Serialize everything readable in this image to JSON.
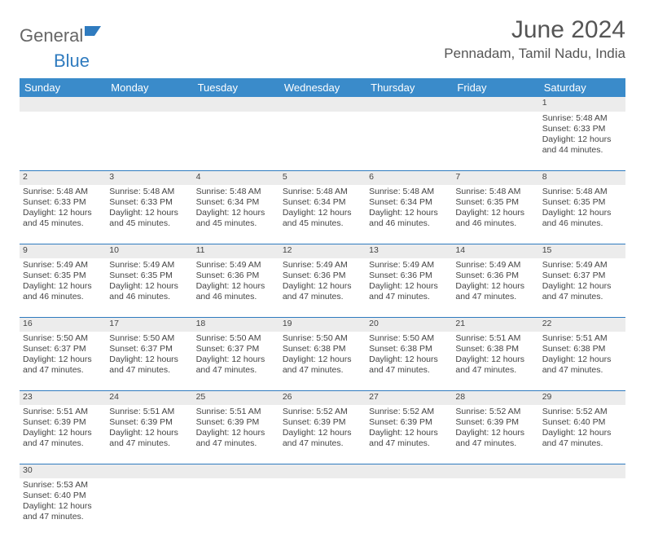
{
  "brand": {
    "part1": "General",
    "part2": "Blue"
  },
  "title": "June 2024",
  "location": "Pennadam, Tamil Nadu, India",
  "colors": {
    "header_bg": "#3a8bca",
    "header_text": "#ffffff",
    "rule": "#2f7bbf",
    "daynum_bg": "#ececec",
    "text": "#444444",
    "title_text": "#555555"
  },
  "day_headers": [
    "Sunday",
    "Monday",
    "Tuesday",
    "Wednesday",
    "Thursday",
    "Friday",
    "Saturday"
  ],
  "weeks": [
    {
      "nums": [
        "",
        "",
        "",
        "",
        "",
        "",
        "1"
      ],
      "cells": [
        null,
        null,
        null,
        null,
        null,
        null,
        {
          "sr": "5:48 AM",
          "ss": "6:33 PM",
          "dl": "12 hours and 44 minutes."
        }
      ]
    },
    {
      "nums": [
        "2",
        "3",
        "4",
        "5",
        "6",
        "7",
        "8"
      ],
      "cells": [
        {
          "sr": "5:48 AM",
          "ss": "6:33 PM",
          "dl": "12 hours and 45 minutes."
        },
        {
          "sr": "5:48 AM",
          "ss": "6:33 PM",
          "dl": "12 hours and 45 minutes."
        },
        {
          "sr": "5:48 AM",
          "ss": "6:34 PM",
          "dl": "12 hours and 45 minutes."
        },
        {
          "sr": "5:48 AM",
          "ss": "6:34 PM",
          "dl": "12 hours and 45 minutes."
        },
        {
          "sr": "5:48 AM",
          "ss": "6:34 PM",
          "dl": "12 hours and 46 minutes."
        },
        {
          "sr": "5:48 AM",
          "ss": "6:35 PM",
          "dl": "12 hours and 46 minutes."
        },
        {
          "sr": "5:48 AM",
          "ss": "6:35 PM",
          "dl": "12 hours and 46 minutes."
        }
      ]
    },
    {
      "nums": [
        "9",
        "10",
        "11",
        "12",
        "13",
        "14",
        "15"
      ],
      "cells": [
        {
          "sr": "5:49 AM",
          "ss": "6:35 PM",
          "dl": "12 hours and 46 minutes."
        },
        {
          "sr": "5:49 AM",
          "ss": "6:35 PM",
          "dl": "12 hours and 46 minutes."
        },
        {
          "sr": "5:49 AM",
          "ss": "6:36 PM",
          "dl": "12 hours and 46 minutes."
        },
        {
          "sr": "5:49 AM",
          "ss": "6:36 PM",
          "dl": "12 hours and 47 minutes."
        },
        {
          "sr": "5:49 AM",
          "ss": "6:36 PM",
          "dl": "12 hours and 47 minutes."
        },
        {
          "sr": "5:49 AM",
          "ss": "6:36 PM",
          "dl": "12 hours and 47 minutes."
        },
        {
          "sr": "5:49 AM",
          "ss": "6:37 PM",
          "dl": "12 hours and 47 minutes."
        }
      ]
    },
    {
      "nums": [
        "16",
        "17",
        "18",
        "19",
        "20",
        "21",
        "22"
      ],
      "cells": [
        {
          "sr": "5:50 AM",
          "ss": "6:37 PM",
          "dl": "12 hours and 47 minutes."
        },
        {
          "sr": "5:50 AM",
          "ss": "6:37 PM",
          "dl": "12 hours and 47 minutes."
        },
        {
          "sr": "5:50 AM",
          "ss": "6:37 PM",
          "dl": "12 hours and 47 minutes."
        },
        {
          "sr": "5:50 AM",
          "ss": "6:38 PM",
          "dl": "12 hours and 47 minutes."
        },
        {
          "sr": "5:50 AM",
          "ss": "6:38 PM",
          "dl": "12 hours and 47 minutes."
        },
        {
          "sr": "5:51 AM",
          "ss": "6:38 PM",
          "dl": "12 hours and 47 minutes."
        },
        {
          "sr": "5:51 AM",
          "ss": "6:38 PM",
          "dl": "12 hours and 47 minutes."
        }
      ]
    },
    {
      "nums": [
        "23",
        "24",
        "25",
        "26",
        "27",
        "28",
        "29"
      ],
      "cells": [
        {
          "sr": "5:51 AM",
          "ss": "6:39 PM",
          "dl": "12 hours and 47 minutes."
        },
        {
          "sr": "5:51 AM",
          "ss": "6:39 PM",
          "dl": "12 hours and 47 minutes."
        },
        {
          "sr": "5:51 AM",
          "ss": "6:39 PM",
          "dl": "12 hours and 47 minutes."
        },
        {
          "sr": "5:52 AM",
          "ss": "6:39 PM",
          "dl": "12 hours and 47 minutes."
        },
        {
          "sr": "5:52 AM",
          "ss": "6:39 PM",
          "dl": "12 hours and 47 minutes."
        },
        {
          "sr": "5:52 AM",
          "ss": "6:39 PM",
          "dl": "12 hours and 47 minutes."
        },
        {
          "sr": "5:52 AM",
          "ss": "6:40 PM",
          "dl": "12 hours and 47 minutes."
        }
      ]
    },
    {
      "nums": [
        "30",
        "",
        "",
        "",
        "",
        "",
        ""
      ],
      "cells": [
        {
          "sr": "5:53 AM",
          "ss": "6:40 PM",
          "dl": "12 hours and 47 minutes."
        },
        null,
        null,
        null,
        null,
        null,
        null
      ]
    }
  ],
  "labels": {
    "sunrise": "Sunrise:",
    "sunset": "Sunset:",
    "daylight": "Daylight:"
  }
}
